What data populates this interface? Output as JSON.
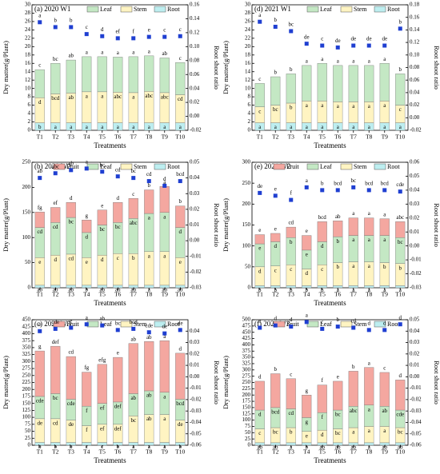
{
  "chart_data": [
    {
      "type": "bar",
      "title": "(a) 2020 W1",
      "ylabel": "Dry matter(g/Plant)",
      "y2label": "Root shoot ratio",
      "xlabel": "Treatments",
      "categories": [
        "T1",
        "T2",
        "T3",
        "T4",
        "T5",
        "T6",
        "T7",
        "T8",
        "T9",
        "T10"
      ],
      "ylim": [
        0,
        30
      ],
      "yticks": [
        0,
        2,
        4,
        6,
        8,
        10,
        12,
        14,
        16,
        18,
        20,
        22,
        24,
        26,
        28,
        30
      ],
      "y2lim": [
        -0.02,
        0.16
      ],
      "y2ticks": [
        -0.02,
        {
          "value": 0,
          "label": "0.00"
        },
        0.02,
        0.04,
        0.06,
        0.08,
        {
          "value": 0.1,
          "label": "0.10"
        },
        0.12,
        0.14,
        0.16
      ],
      "series": [
        {
          "name": "Root",
          "color": "#bdeef0",
          "values": [
            1.8,
            1.8,
            1.8,
            1.8,
            1.8,
            1.8,
            1.8,
            1.8,
            1.8,
            1.8
          ],
          "letters": [
            "b",
            "a",
            "a",
            "a",
            "a",
            "a",
            "a",
            "a",
            "a",
            "a"
          ]
        },
        {
          "name": "Stem",
          "color": "#fff4c2",
          "values": [
            6.0,
            6.9,
            7.1,
            7.4,
            7.4,
            7.3,
            7.2,
            7.5,
            7.2,
            6.7
          ],
          "letters": [
            "d",
            "bcd",
            "ab",
            "a",
            "a",
            "abc",
            "a",
            "abc",
            "abc",
            "cd"
          ]
        },
        {
          "name": "Leaf",
          "color": "#c4e8c4",
          "values": [
            6.7,
            7.3,
            7.9,
            8.4,
            8.4,
            8.4,
            8.6,
            8.5,
            8.3,
            7.7
          ],
          "letters": [
            "c",
            "bc",
            "ab",
            "a",
            "a",
            "a",
            "a",
            "a",
            "ab",
            "c"
          ]
        }
      ],
      "ratio": {
        "color": "#1f3fd1",
        "axis": "y2",
        "values": [
          0.135,
          0.128,
          0.128,
          0.118,
          0.115,
          0.112,
          0.112,
          0.114,
          0.114,
          0.115
        ],
        "letters": [
          "a",
          "b",
          "b",
          "c",
          "d",
          "ef",
          "f",
          "e",
          "c",
          "c"
        ]
      }
    },
    {
      "type": "bar",
      "title": "(b) 2020 W2",
      "ylabel": "Dry matter(g/Plant)",
      "y2label": "Root shoot ratio",
      "xlabel": "Treatments",
      "categories": [
        "T1",
        "T2",
        "T3",
        "T4",
        "T5",
        "T6",
        "T7",
        "T8",
        "T9",
        "T10"
      ],
      "ylim": [
        0,
        250
      ],
      "yticks": [
        0,
        50,
        100,
        150,
        200,
        250
      ],
      "y2lim": [
        -0.03,
        0.05
      ],
      "y2ticks": [
        -0.03,
        -0.02,
        -0.01,
        {
          "value": 0,
          "label": "0.00"
        },
        0.01,
        0.02,
        0.03,
        0.04,
        0.05
      ],
      "series": [
        {
          "name": "Root",
          "color": "#bdeef0",
          "values": [
            5,
            5,
            5,
            5,
            5,
            5,
            5,
            5,
            5,
            5
          ],
          "letters": [
            "ab",
            "ab",
            "ab",
            "b",
            "ab",
            "ab",
            "ab",
            "a",
            "ab",
            "ab"
          ]
        },
        {
          "name": "Stem",
          "color": "#fff4c2",
          "values": [
            55,
            60,
            62,
            55,
            60,
            63,
            63,
            67,
            67,
            55
          ],
          "letters": [
            "e",
            "d",
            "cd",
            "e",
            "d",
            "c",
            "b",
            "a",
            "a",
            "e"
          ]
        },
        {
          "name": "Leaf",
          "color": "#c4e8c4",
          "values": [
            60,
            65,
            73,
            50,
            60,
            62,
            70,
            76,
            78,
            60
          ],
          "letters": [
            "cd",
            "cd",
            "bc",
            "d",
            "bc",
            "bc",
            "abc",
            "a",
            "a",
            "d"
          ]
        },
        {
          "name": "Fruit",
          "color": "#f4a7a0",
          "values": [
            31,
            30,
            30,
            25,
            30,
            40,
            40,
            47,
            52,
            43
          ],
          "letters": [
            "fg",
            "ef",
            "d",
            "g",
            "e",
            "d",
            "c",
            "b",
            "a",
            "b"
          ]
        }
      ],
      "ratio": {
        "color": "#1f3fd1",
        "axis": "y2",
        "values": [
          0.04,
          0.043,
          0.045,
          0.046,
          0.044,
          0.041,
          0.04,
          0.038,
          0.035,
          0.038
        ],
        "letters": [
          "ab",
          "abc",
          "ab",
          "a",
          "bc",
          "cd",
          "bc",
          "cd",
          "d",
          "bcd"
        ]
      }
    },
    {
      "type": "bar",
      "title": "(c) 2020 W3",
      "ylabel": "Dry matter(g/Plant)",
      "y2label": "Root shoot ratio",
      "xlabel": "Treatments",
      "categories": [
        "T1",
        "T2",
        "T3",
        "T4",
        "T5",
        "T6",
        "T7",
        "T8",
        "T9",
        "T10"
      ],
      "ylim": [
        0,
        450
      ],
      "yticks": [
        0,
        25,
        50,
        75,
        100,
        125,
        150,
        175,
        200,
        225,
        250,
        275,
        300,
        325,
        350,
        375,
        400,
        425,
        450
      ],
      "y2lim": [
        -0.06,
        0.05
      ],
      "y2ticks": [
        -0.06,
        -0.05,
        -0.04,
        -0.03,
        -0.02,
        -0.01,
        {
          "value": 0,
          "label": "0.00"
        },
        0.01,
        0.02,
        0.03,
        0.04
      ],
      "series": [
        {
          "name": "Root",
          "color": "#bdeef0",
          "values": [
            10,
            10,
            10,
            10,
            10,
            10,
            10,
            10,
            10,
            10
          ],
          "letters": [
            "b",
            "b",
            "b",
            "c",
            "c",
            "b",
            "a",
            "a",
            "a",
            "b"
          ]
        },
        {
          "name": "Stem",
          "color": "#fff4c2",
          "values": [
            85,
            85,
            80,
            60,
            65,
            65,
            95,
            100,
            100,
            80
          ],
          "letters": [
            "de",
            "cd",
            "de",
            "f",
            "ef",
            "def",
            "bc",
            "ab",
            "a",
            "de"
          ]
        },
        {
          "name": "Leaf",
          "color": "#c4e8c4",
          "values": [
            80,
            90,
            75,
            70,
            75,
            80,
            80,
            85,
            80,
            75
          ],
          "letters": [
            "cde",
            "bc",
            "cde",
            "f",
            "ef",
            "def",
            "ab",
            "ab",
            "a",
            "bcd"
          ]
        },
        {
          "name": "Fruit",
          "color": "#f4a7a0",
          "values": [
            163,
            170,
            153,
            122,
            140,
            160,
            180,
            177,
            185,
            165
          ],
          "letters": [
            "g",
            "def",
            "cd",
            "fg",
            "efg",
            "e",
            "ab",
            "ab",
            "a",
            "d"
          ]
        }
      ],
      "ratio": {
        "color": "#1f3fd1",
        "axis": "y2",
        "values": [
          0.04,
          0.042,
          0.043,
          0.046,
          0.045,
          0.041,
          0.042,
          0.039,
          0.038,
          0.041
        ],
        "letters": [
          "e",
          "cde",
          "e",
          "a",
          "ab",
          "bc",
          "bcd",
          "cde",
          "de",
          "de"
        ]
      }
    },
    {
      "type": "bar",
      "title": "(d) 2021 W1",
      "ylabel": "Dry matter(g/Plant)",
      "y2label": "Root shoot ratio",
      "xlabel": "Treatments",
      "categories": [
        "T1",
        "T2",
        "T3",
        "T4",
        "T5",
        "T6",
        "T7",
        "T8",
        "T9",
        "T10"
      ],
      "ylim": [
        0,
        30
      ],
      "yticks": [
        0,
        2,
        4,
        6,
        8,
        10,
        12,
        14,
        16,
        18,
        20,
        22,
        24,
        26,
        28,
        30
      ],
      "y2lim": [
        -0.02,
        0.18
      ],
      "y2ticks": [
        -0.02,
        {
          "value": 0,
          "label": "0.00"
        },
        0.02,
        0.04,
        0.06,
        0.08,
        {
          "value": 0.1,
          "label": "0.10"
        },
        0.12,
        0.14,
        0.16,
        0.18
      ],
      "series": [
        {
          "name": "Root",
          "color": "#bdeef0",
          "values": [
            1.8,
            1.8,
            1.8,
            1.8,
            1.8,
            1.8,
            1.8,
            1.8,
            1.8,
            1.8
          ],
          "letters": [
            "a",
            "a",
            "a",
            "a",
            "a",
            "a",
            "a",
            "a",
            "a",
            "a"
          ]
        },
        {
          "name": "Stem",
          "color": "#fff4c2",
          "values": [
            3.8,
            4.2,
            4.7,
            5.2,
            5.2,
            5.0,
            5.0,
            5.0,
            5.2,
            4.2
          ],
          "letters": [
            "c",
            "bc",
            "b",
            "a",
            "a",
            "a",
            "a",
            "a",
            "a",
            "c"
          ]
        },
        {
          "name": "Leaf",
          "color": "#c4e8c4",
          "values": [
            5.6,
            6.8,
            7.0,
            8.5,
            9.0,
            8.7,
            8.7,
            8.7,
            9.0,
            7.5
          ],
          "letters": [
            "c",
            "b",
            "b",
            "a",
            "a",
            "a",
            "a",
            "a",
            "a",
            "b"
          ]
        }
      ],
      "ratio": {
        "color": "#1f3fd1",
        "axis": "y2",
        "values": [
          0.153,
          0.145,
          0.138,
          0.118,
          0.115,
          0.112,
          0.115,
          0.115,
          0.115,
          0.142
        ],
        "letters": [
          "a",
          "b",
          "bc",
          "de",
          "c",
          "de",
          "de",
          "de",
          "de",
          "b"
        ]
      }
    },
    {
      "type": "bar",
      "title": "(e) 2021 W2",
      "ylabel": "Dry matter(g/Plant)",
      "y2label": "Root shoot ratio",
      "xlabel": "Treatments",
      "categories": [
        "T1",
        "T2",
        "T3",
        "T4",
        "T5",
        "T6",
        "T7",
        "T8",
        "T9",
        "T10"
      ],
      "ylim": [
        0,
        300
      ],
      "yticks": [
        0,
        50,
        100,
        150,
        200,
        250,
        300
      ],
      "y2lim": [
        -0.03,
        0.06
      ],
      "y2ticks": [
        -0.03,
        -0.02,
        -0.01,
        {
          "value": 0,
          "label": "0.00"
        },
        0.01,
        0.02,
        0.03,
        0.04,
        0.05,
        0.06
      ],
      "series": [
        {
          "name": "Root",
          "color": "#bdeef0",
          "values": [
            5,
            5,
            5,
            5,
            5,
            5,
            5,
            5,
            5,
            5
          ],
          "letters": [
            "b",
            "b",
            "b",
            "b",
            "b",
            "a",
            "a",
            "a",
            "a",
            "a"
          ]
        },
        {
          "name": "Stem",
          "color": "#fff4c2",
          "values": [
            45,
            47,
            50,
            40,
            50,
            55,
            57,
            57,
            55,
            53
          ],
          "letters": [
            "d",
            "c",
            "c",
            "d",
            "c",
            "b",
            "a",
            "a",
            "b",
            "b"
          ]
        },
        {
          "name": "Leaf",
          "color": "#c4e8c4",
          "values": [
            55,
            58,
            65,
            45,
            55,
            62,
            63,
            63,
            65,
            62
          ],
          "letters": [
            "e",
            "d",
            "b",
            "e",
            "d",
            "b",
            "a",
            "a",
            "a",
            "bc"
          ]
        },
        {
          "name": "Fruit",
          "color": "#f4a7a0",
          "values": [
            22,
            20,
            25,
            35,
            48,
            38,
            42,
            42,
            40,
            38
          ],
          "letters": [
            "e",
            "e",
            "cd",
            "e",
            "bcd",
            "ab",
            "a",
            "a",
            "a",
            "abc"
          ]
        }
      ],
      "ratio": {
        "color": "#1f3fd1",
        "axis": "y2",
        "values": [
          0.038,
          0.036,
          0.033,
          0.042,
          0.04,
          0.04,
          0.042,
          0.04,
          0.04,
          0.039
        ],
        "letters": [
          "de",
          "e",
          "f",
          "a",
          "b",
          "bcd",
          "bc",
          "bcd",
          "bcd",
          "cde"
        ]
      }
    },
    {
      "type": "bar",
      "title": "(f) 2021 W3",
      "ylabel": "Dry matter(g/Plant)",
      "y2label": "Root shoot ratio",
      "xlabel": "Treatments",
      "categories": [
        "T1",
        "T2",
        "T3",
        "T4",
        "T5",
        "T6",
        "T7",
        "T8",
        "T9",
        "T10"
      ],
      "ylim": [
        0,
        500
      ],
      "yticks": [
        0,
        25,
        50,
        75,
        100,
        125,
        150,
        175,
        200,
        225,
        250,
        275,
        300,
        325,
        350,
        375,
        400,
        425,
        450,
        475,
        500
      ],
      "y2lim": [
        -0.06,
        0.05
      ],
      "y2ticks": [
        -0.06,
        -0.05,
        -0.04,
        -0.03,
        -0.02,
        -0.01,
        {
          "value": 0,
          "label": "0.00"
        },
        0.01,
        0.02,
        0.03,
        0.04,
        0.05
      ],
      "series": [
        {
          "name": "Root",
          "color": "#bdeef0",
          "values": [
            10,
            10,
            10,
            10,
            10,
            10,
            10,
            10,
            10,
            10
          ],
          "letters": [
            "ab",
            "ab",
            "a",
            "b",
            "ab",
            "ab",
            "ab",
            "a",
            "ab",
            "ab"
          ]
        },
        {
          "name": "Stem",
          "color": "#fff4c2",
          "values": [
            55,
            60,
            60,
            45,
            50,
            55,
            60,
            65,
            65,
            60
          ],
          "letters": [
            "c",
            "bc",
            "b",
            "e",
            "d",
            "bc",
            "a",
            "a",
            "a",
            "bc"
          ]
        },
        {
          "name": "Leaf",
          "color": "#c4e8c4",
          "values": [
            75,
            80,
            75,
            55,
            70,
            75,
            85,
            85,
            80,
            70
          ],
          "letters": [
            "d",
            "bcd",
            "cd",
            "g",
            "f",
            "bc",
            "abc",
            "a",
            "ab",
            "cde"
          ]
        },
        {
          "name": "Fruit",
          "color": "#f4a7a0",
          "values": [
            115,
            135,
            120,
            90,
            110,
            115,
            140,
            150,
            135,
            120
          ],
          "letters": [
            "d",
            "b",
            "c",
            "g",
            "f",
            "e",
            "b",
            "a",
            "c",
            "d"
          ]
        }
      ],
      "ratio": {
        "color": "#1f3fd1",
        "axis": "y2",
        "values": [
          0.043,
          0.045,
          0.044,
          0.048,
          0.042,
          0.044,
          0.043,
          0.041,
          0.041,
          0.046
        ],
        "letters": [
          "e",
          "d",
          "d",
          "a",
          "c",
          "b",
          "cd",
          "d",
          "d",
          "d"
        ]
      }
    }
  ]
}
